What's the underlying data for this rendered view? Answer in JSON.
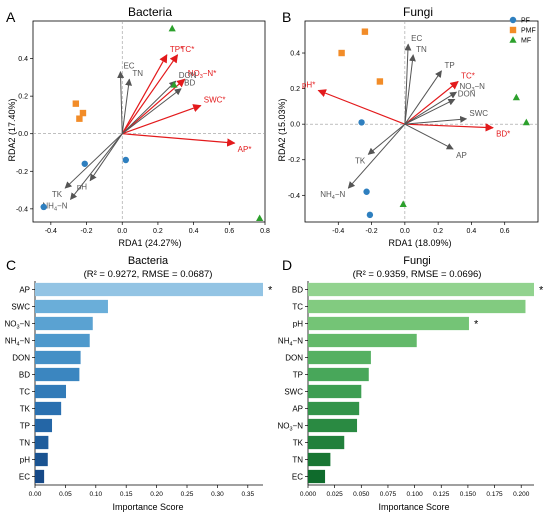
{
  "chart_data": [
    {
      "panel_letter": "A",
      "type": "scatter",
      "title": "Bacteria",
      "xlabel": "RDA1 (24.27%)",
      "ylabel": "RDA2 (17.40%)",
      "xlim": [
        -0.5,
        0.8
      ],
      "ylim": [
        -0.47,
        0.6
      ],
      "xticks": [
        -0.4,
        -0.2,
        0.0,
        0.2,
        0.4,
        0.6,
        0.8
      ],
      "yticks": [
        -0.4,
        -0.2,
        0.0,
        0.2,
        0.4
      ],
      "series": [
        {
          "name": "PF",
          "color": "#2e7fbf",
          "marker": "circle",
          "points": [
            [
              -0.44,
              -0.39
            ],
            [
              -0.21,
              -0.16
            ],
            [
              0.02,
              -0.14
            ]
          ]
        },
        {
          "name": "PMF",
          "color": "#f28c28",
          "marker": "square",
          "points": [
            [
              -0.26,
              0.16
            ],
            [
              -0.22,
              0.11
            ],
            [
              -0.24,
              0.08
            ]
          ]
        },
        {
          "name": "MF",
          "color": "#2ca02c",
          "marker": "triangle",
          "points": [
            [
              0.28,
              0.56
            ],
            [
              0.29,
              0.26
            ],
            [
              0.77,
              -0.45
            ]
          ]
        }
      ],
      "vectors": [
        {
          "label": "TP*",
          "x": 0.25,
          "y": 0.42,
          "color": "#e31a1c"
        },
        {
          "label": "TC*",
          "x": 0.31,
          "y": 0.42,
          "color": "#e31a1c"
        },
        {
          "label": "NO3-N*",
          "x": 0.35,
          "y": 0.29,
          "color": "#e31a1c"
        },
        {
          "label": "SWC*",
          "x": 0.44,
          "y": 0.15,
          "color": "#e31a1c"
        },
        {
          "label": "AP*",
          "x": 0.63,
          "y": -0.05,
          "color": "#e31a1c"
        },
        {
          "label": "EC",
          "x": -0.01,
          "y": 0.33,
          "color": "#555555"
        },
        {
          "label": "TN",
          "x": 0.04,
          "y": 0.29,
          "color": "#555555"
        },
        {
          "label": "DON",
          "x": 0.3,
          "y": 0.28,
          "color": "#555555"
        },
        {
          "label": "BD",
          "x": 0.33,
          "y": 0.24,
          "color": "#555555"
        },
        {
          "label": "TK",
          "x": -0.32,
          "y": -0.29,
          "color": "#555555"
        },
        {
          "label": "pH",
          "x": -0.18,
          "y": -0.25,
          "color": "#555555"
        },
        {
          "label": "NH4-N",
          "x": -0.29,
          "y": -0.35,
          "color": "#555555"
        }
      ]
    },
    {
      "panel_letter": "B",
      "type": "scatter",
      "title": "Fungi",
      "xlabel": "RDA1 (18.09%)",
      "ylabel": "RDA2 (15.03%)",
      "xlim": [
        -0.6,
        0.8
      ],
      "ylim": [
        -0.55,
        0.58
      ],
      "xticks": [
        -0.4,
        -0.2,
        0.0,
        0.2,
        0.4,
        0.6
      ],
      "yticks": [
        -0.4,
        -0.2,
        0.0,
        0.2,
        0.4
      ],
      "legend_position": "top-right",
      "series": [
        {
          "name": "PF",
          "color": "#2e7fbf",
          "marker": "circle",
          "points": [
            [
              -0.26,
              0.01
            ],
            [
              -0.23,
              -0.38
            ],
            [
              -0.21,
              -0.51
            ]
          ]
        },
        {
          "name": "PMF",
          "color": "#f28c28",
          "marker": "square",
          "points": [
            [
              -0.24,
              0.52
            ],
            [
              -0.38,
              0.4
            ],
            [
              -0.15,
              0.24
            ]
          ]
        },
        {
          "name": "MF",
          "color": "#2ca02c",
          "marker": "triangle",
          "points": [
            [
              0.67,
              0.15
            ],
            [
              0.73,
              0.01
            ],
            [
              -0.01,
              -0.45
            ]
          ]
        }
      ],
      "vectors": [
        {
          "label": "pH*",
          "x": -0.52,
          "y": 0.19,
          "color": "#e31a1c"
        },
        {
          "label": "TC*",
          "x": 0.32,
          "y": 0.24,
          "color": "#e31a1c"
        },
        {
          "label": "BD*",
          "x": 0.53,
          "y": -0.02,
          "color": "#e31a1c"
        },
        {
          "label": "EC",
          "x": 0.02,
          "y": 0.45,
          "color": "#555555"
        },
        {
          "label": "TN",
          "x": 0.05,
          "y": 0.39,
          "color": "#555555"
        },
        {
          "label": "TP",
          "x": 0.22,
          "y": 0.3,
          "color": "#555555"
        },
        {
          "label": "NO3-N",
          "x": 0.31,
          "y": 0.18,
          "color": "#555555"
        },
        {
          "label": "DON",
          "x": 0.3,
          "y": 0.14,
          "color": "#555555"
        },
        {
          "label": "SWC",
          "x": 0.37,
          "y": 0.03,
          "color": "#555555"
        },
        {
          "label": "AP",
          "x": 0.29,
          "y": -0.14,
          "color": "#555555"
        },
        {
          "label": "TK",
          "x": -0.22,
          "y": -0.17,
          "color": "#555555"
        },
        {
          "label": "NH4-N",
          "x": -0.34,
          "y": -0.36,
          "color": "#555555"
        }
      ]
    },
    {
      "panel_letter": "C",
      "type": "bar",
      "orientation": "horizontal",
      "title": "Bacteria",
      "subtitle": "(R² = 0.9272, RMSE = 0.0687)",
      "xlabel": "Importance Score",
      "ylabel": "",
      "xlim": [
        0,
        0.375
      ],
      "xticks": [
        "0.00",
        "0.05",
        "0.10",
        "0.15",
        "0.20",
        "0.25",
        "0.30",
        "0.35"
      ],
      "categories": [
        "AP",
        "SWC",
        "NO3-N",
        "NH4-N",
        "DON",
        "BD",
        "TC",
        "TK",
        "TP",
        "TN",
        "pH",
        "EC"
      ],
      "values": [
        0.375,
        0.12,
        0.095,
        0.09,
        0.075,
        0.073,
        0.051,
        0.043,
        0.028,
        0.022,
        0.021,
        0.015
      ],
      "significant": [
        "*",
        "",
        "",
        "",
        "",
        "",
        "",
        "",
        "",
        "",
        "",
        ""
      ],
      "colors": [
        "#93c4e4",
        "#6aaed9",
        "#5aa2d2",
        "#4e99cc",
        "#4590c6",
        "#3b86c0",
        "#327bb8",
        "#2a70b0",
        "#2466a6",
        "#1f5d9c",
        "#1a5391",
        "#164987"
      ]
    },
    {
      "panel_letter": "D",
      "type": "bar",
      "orientation": "horizontal",
      "title": "Fungi",
      "subtitle": "(R² = 0.9359, RMSE = 0.0696)",
      "xlabel": "Importance Score",
      "ylabel": "",
      "xlim": [
        0,
        0.212
      ],
      "xticks": [
        "0.000",
        "0.025",
        "0.050",
        "0.075",
        "0.100",
        "0.125",
        "0.150",
        "0.175",
        "0.200"
      ],
      "categories": [
        "BD",
        "TC",
        "pH",
        "NH4-N",
        "DON",
        "TP",
        "SWC",
        "AP",
        "NO3-N",
        "TK",
        "TN",
        "EC"
      ],
      "values": [
        0.212,
        0.204,
        0.151,
        0.102,
        0.059,
        0.057,
        0.05,
        0.048,
        0.046,
        0.034,
        0.021,
        0.016
      ],
      "significant": [
        "*",
        "",
        "*",
        "",
        "",
        "",
        "",
        "",
        "",
        "",
        "",
        ""
      ],
      "colors": [
        "#92d38f",
        "#82cb80",
        "#74c476",
        "#63b96a",
        "#55b062",
        "#48a75a",
        "#3d9e52",
        "#33944a",
        "#2a8a42",
        "#21803b",
        "#187633",
        "#0f6b2c"
      ]
    }
  ]
}
